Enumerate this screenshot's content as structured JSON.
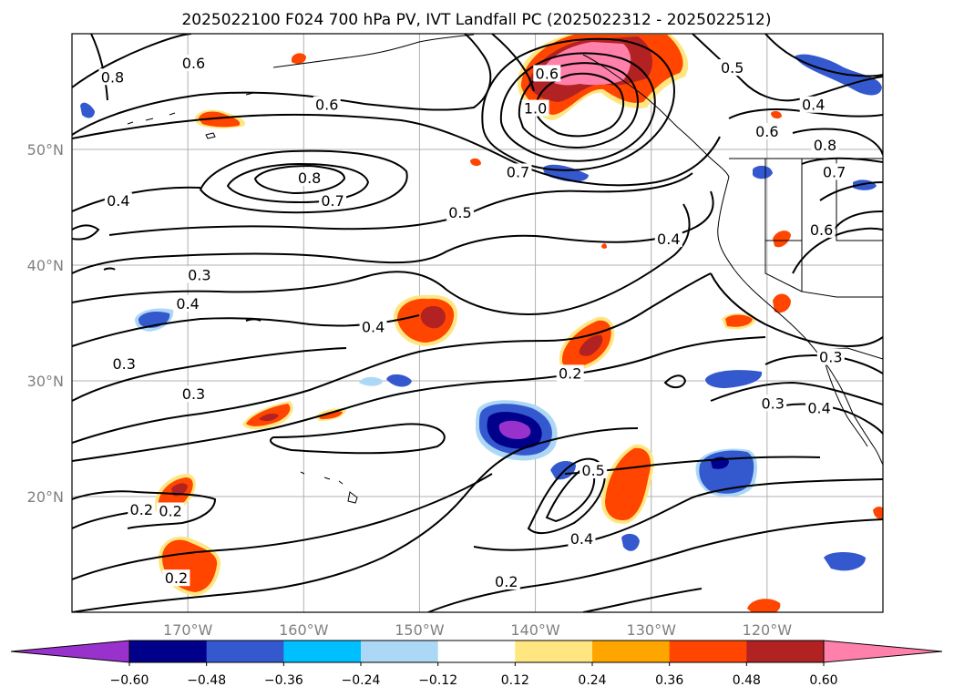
{
  "title": "2025022100 F024 700 hPa PV, IVT Landfall PC (2025022312 - 2025022512)",
  "map": {
    "lon_range": [
      -180,
      -110
    ],
    "lat_range": [
      10,
      60
    ],
    "lon_ticks": [
      {
        "lon": -170,
        "label": "170°W"
      },
      {
        "lon": -160,
        "label": "160°W"
      },
      {
        "lon": -150,
        "label": "150°W"
      },
      {
        "lon": -140,
        "label": "140°W"
      },
      {
        "lon": -130,
        "label": "130°W"
      },
      {
        "lon": -120,
        "label": "120°W"
      }
    ],
    "lat_ticks": [
      {
        "lat": 20,
        "label": "20°N"
      },
      {
        "lat": 30,
        "label": "30°N"
      },
      {
        "lat": 40,
        "label": "40°N"
      },
      {
        "lat": 50,
        "label": "50°N"
      }
    ],
    "grid": true
  },
  "contour_labels": [
    {
      "text": "0.8",
      "lon": -176.5,
      "lat": 56.2
    },
    {
      "text": "0.6",
      "lon": -169.5,
      "lat": 57.4
    },
    {
      "text": "0.6",
      "lon": -158.0,
      "lat": 53.8
    },
    {
      "text": "0.8",
      "lon": -159.5,
      "lat": 47.5
    },
    {
      "text": "0.7",
      "lon": -157.5,
      "lat": 45.5
    },
    {
      "text": "0.4",
      "lon": -176.0,
      "lat": 45.5
    },
    {
      "text": "0.5",
      "lon": -146.5,
      "lat": 44.5
    },
    {
      "text": "0.6",
      "lon": -139.0,
      "lat": 56.5
    },
    {
      "text": "1.0",
      "lon": -140.0,
      "lat": 53.5
    },
    {
      "text": "0.7",
      "lon": -141.5,
      "lat": 48.0
    },
    {
      "text": "0.5",
      "lon": -123.0,
      "lat": 57.0
    },
    {
      "text": "0.6",
      "lon": -120.0,
      "lat": 51.5
    },
    {
      "text": "0.4",
      "lon": -116.0,
      "lat": 53.8
    },
    {
      "text": "0.8",
      "lon": -115.0,
      "lat": 50.3
    },
    {
      "text": "0.7",
      "lon": -114.2,
      "lat": 48.0
    },
    {
      "text": "0.6",
      "lon": -115.3,
      "lat": 43.0
    },
    {
      "text": "0.4",
      "lon": -128.5,
      "lat": 42.2
    },
    {
      "text": "0.3",
      "lon": -169.0,
      "lat": 39.1
    },
    {
      "text": "0.4",
      "lon": -170.0,
      "lat": 36.6
    },
    {
      "text": "0.4",
      "lon": -154.0,
      "lat": 34.6
    },
    {
      "text": "0.3",
      "lon": -175.5,
      "lat": 31.4
    },
    {
      "text": "0.3",
      "lon": -169.5,
      "lat": 28.8
    },
    {
      "text": "0.2",
      "lon": -137.0,
      "lat": 30.6
    },
    {
      "text": "0.3",
      "lon": -119.5,
      "lat": 28.0
    },
    {
      "text": "0.4",
      "lon": -115.5,
      "lat": 27.6
    },
    {
      "text": "0.3",
      "lon": -114.5,
      "lat": 32.0
    },
    {
      "text": "0.5",
      "lon": -135.0,
      "lat": 22.2
    },
    {
      "text": "0.4",
      "lon": -136.0,
      "lat": 16.3
    },
    {
      "text": "0.2",
      "lon": -174.0,
      "lat": 18.8
    },
    {
      "text": "0.2",
      "lon": -171.5,
      "lat": 18.7
    },
    {
      "text": "0.2",
      "lon": -171.0,
      "lat": 12.9
    },
    {
      "text": "0.2",
      "lon": -142.5,
      "lat": 12.6
    }
  ],
  "colorbar": {
    "levels": [
      -0.72,
      -0.6,
      -0.48,
      -0.36,
      -0.24,
      -0.12,
      0.12,
      0.24,
      0.36,
      0.48,
      0.6,
      0.72
    ],
    "colors": [
      "#9932cc",
      "#00008b",
      "#3459cf",
      "#00bfff",
      "#add8f5",
      "#ffffff",
      "#ffe680",
      "#ffa500",
      "#ff4500",
      "#b22222",
      "#ff80aa"
    ],
    "tick_labels": [
      "−0.60",
      "−0.48",
      "−0.36",
      "−0.24",
      "−0.12",
      "0.12",
      "0.24",
      "0.36",
      "0.48",
      "0.60"
    ],
    "extend": "both"
  }
}
